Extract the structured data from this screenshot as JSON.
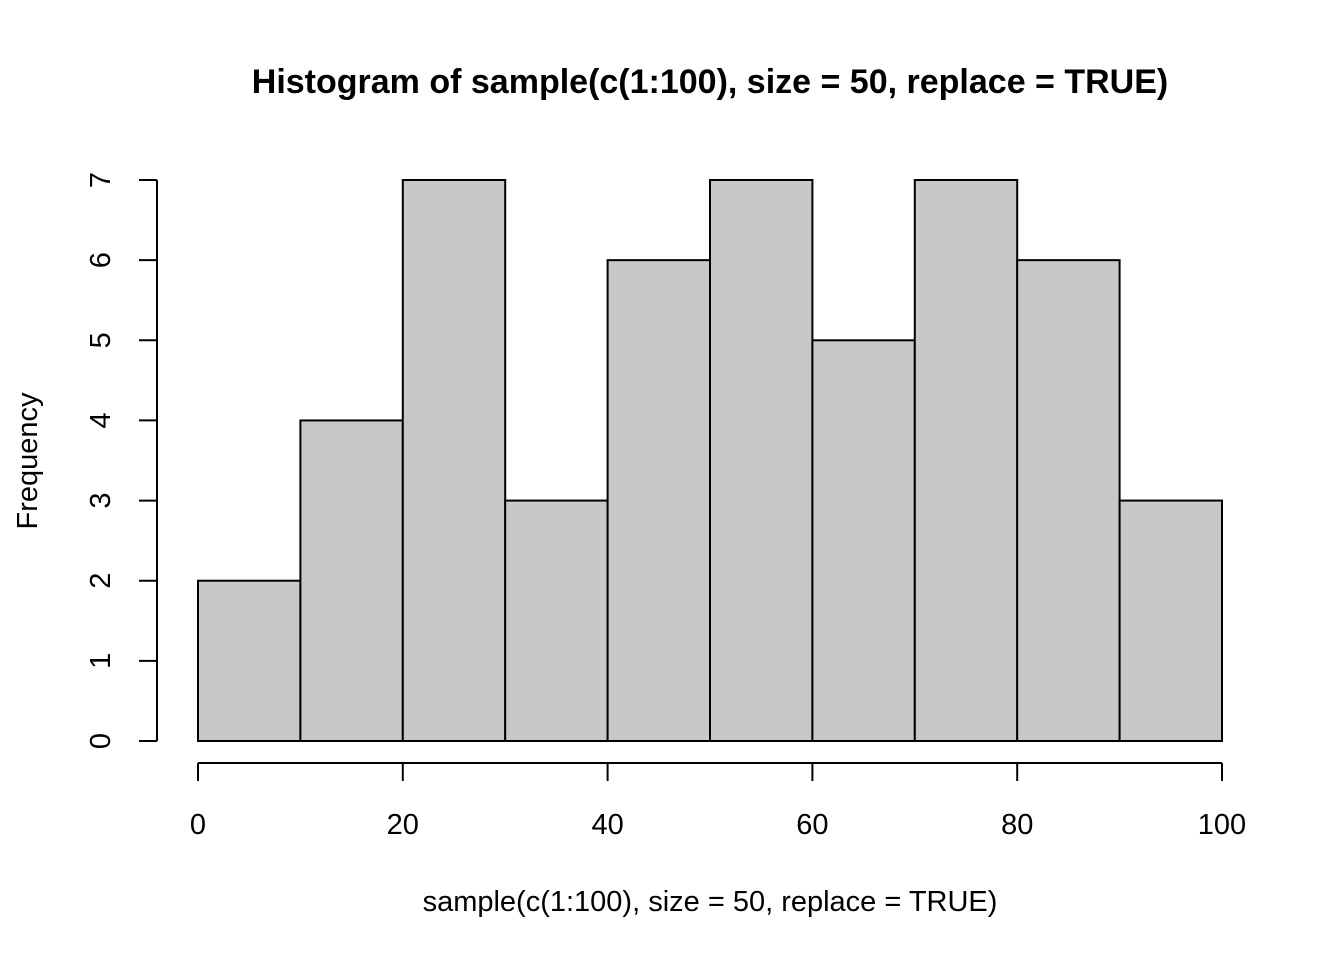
{
  "chart_data": {
    "type": "bar",
    "subtype": "histogram",
    "title": "Histogram of sample(c(1:100), size = 50, replace = TRUE)",
    "xlabel": "sample(c(1:100), size = 50, replace = TRUE)",
    "ylabel": "Frequency",
    "bins": [
      {
        "from": 0,
        "to": 10,
        "count": 2
      },
      {
        "from": 10,
        "to": 20,
        "count": 4
      },
      {
        "from": 20,
        "to": 30,
        "count": 7
      },
      {
        "from": 30,
        "to": 40,
        "count": 3
      },
      {
        "from": 40,
        "to": 50,
        "count": 6
      },
      {
        "from": 50,
        "to": 60,
        "count": 7
      },
      {
        "from": 60,
        "to": 70,
        "count": 5
      },
      {
        "from": 70,
        "to": 80,
        "count": 7
      },
      {
        "from": 80,
        "to": 90,
        "count": 6
      },
      {
        "from": 90,
        "to": 100,
        "count": 3
      }
    ],
    "xlim": [
      0,
      100
    ],
    "ylim": [
      0,
      7
    ],
    "x_ticks": [
      0,
      20,
      40,
      60,
      80,
      100
    ],
    "x_tick_labels": [
      "0",
      "20",
      "40",
      "60",
      "80",
      "100"
    ],
    "y_ticks": [
      0,
      1,
      2,
      3,
      4,
      5,
      6,
      7
    ],
    "y_tick_labels": [
      "0",
      "1",
      "2",
      "3",
      "4",
      "5",
      "6",
      "7"
    ],
    "bar_color": "#c8c8c8",
    "edge_color": "#000000",
    "grid": false,
    "legend": "none"
  }
}
